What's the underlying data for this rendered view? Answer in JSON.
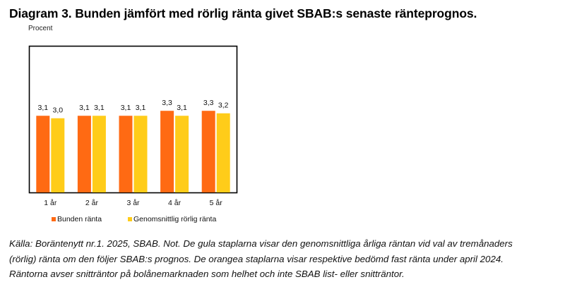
{
  "title": "Diagram 3. Bunden jämfört med rörlig ränta givet SBAB:s senaste ränteprognos.",
  "chart_data": {
    "type": "bar",
    "ylabel": "Procent",
    "categories": [
      "1 år",
      "2 år",
      "3 år",
      "4 år",
      "5 år"
    ],
    "series": [
      {
        "name": "Bunden ränta",
        "color": "#FF6A13",
        "values": [
          3.1,
          3.1,
          3.1,
          3.3,
          3.3
        ],
        "labels": [
          "3,1",
          "3,1",
          "3,1",
          "3,3",
          "3,3"
        ]
      },
      {
        "name": "Genomsnittlig rörlig ränta",
        "color": "#FFCC19",
        "values": [
          3.0,
          3.1,
          3.1,
          3.1,
          3.2
        ],
        "labels": [
          "3,0",
          "3,1",
          "3,1",
          "3,1",
          "3,2"
        ]
      }
    ],
    "ylim": [
      0,
      5.9
    ],
    "grid": false,
    "legend_position": "bottom"
  },
  "note_lines": [
    "Källa: Boräntenytt nr.1. 2025, SBAB. Not. De gula staplarna visar den genomsnittliga årliga räntan vid val av tremånaders",
    "(rörlig) ränta om den följer SBAB:s prognos. De orangea staplarna visar respektive bedömd fast ränta under april 2024.",
    "Räntorna avser snitträntor på bolånemarknaden som helhet och inte SBAB list- eller snitträntor."
  ]
}
